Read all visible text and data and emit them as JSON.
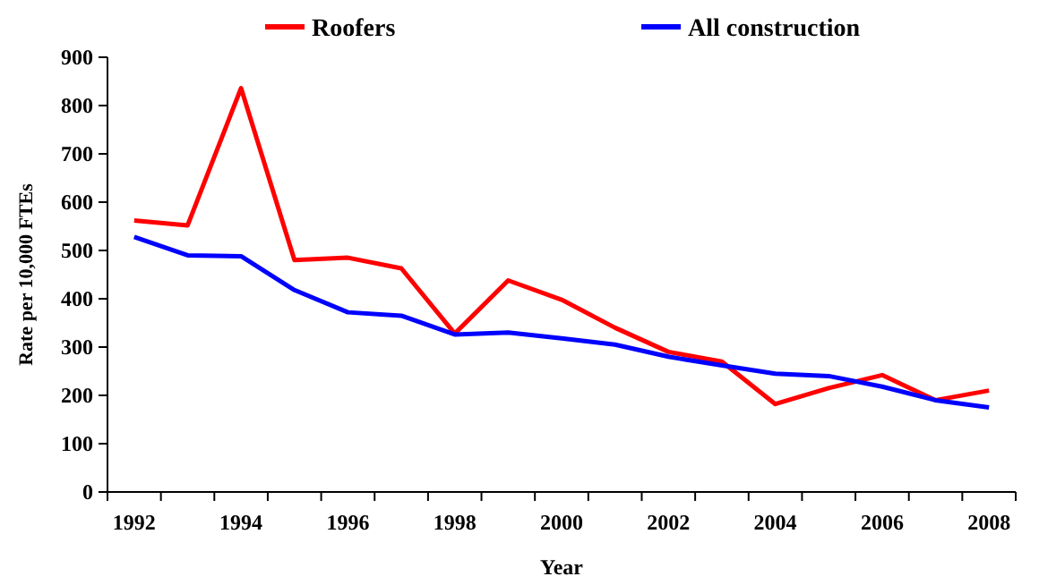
{
  "chart_data": {
    "type": "line",
    "xlabel": "Year",
    "ylabel": "Rate per 10,000 FTEs",
    "categories": [
      "1992",
      null,
      "1994",
      null,
      "1996",
      null,
      "1998",
      null,
      "2000",
      null,
      "2002",
      null,
      "2004",
      null,
      "2006",
      null,
      "2008"
    ],
    "series": [
      {
        "name": "Roofers",
        "color": "#ff0000",
        "values": [
          562,
          552,
          836,
          480,
          485,
          463,
          328,
          438,
          398,
          340,
          290,
          270,
          182,
          215,
          242,
          190,
          210
        ]
      },
      {
        "name": "All construction",
        "color": "#0000ff",
        "values": [
          528,
          490,
          488,
          418,
          372,
          365,
          326,
          330,
          318,
          305,
          280,
          262,
          245,
          240,
          218,
          190,
          175
        ]
      }
    ],
    "ylim": [
      0,
      900
    ],
    "yticks": [
      0,
      100,
      200,
      300,
      400,
      500,
      600,
      700,
      800,
      900
    ],
    "grid": false,
    "legend": "top",
    "marker": "none",
    "line_style": "solid"
  }
}
